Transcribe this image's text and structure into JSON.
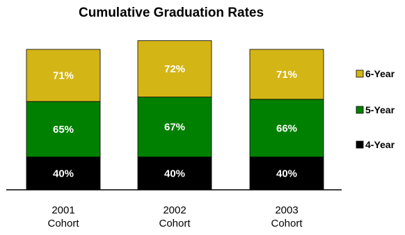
{
  "chart_data": {
    "type": "bar",
    "stacked": true,
    "title": "Cumulative Graduation Rates",
    "categories": [
      [
        "2001",
        "Cohort"
      ],
      [
        "2002",
        "Cohort"
      ],
      [
        "2003",
        "Cohort"
      ]
    ],
    "series": [
      {
        "name": "4-Year",
        "values": [
          40,
          40,
          40
        ],
        "labels": [
          "40%",
          "40%",
          "40%"
        ],
        "color": "#000000"
      },
      {
        "name": "5-Year",
        "values": [
          65,
          67,
          66
        ],
        "labels": [
          "65%",
          "67%",
          "66%"
        ],
        "color": "#008000"
      },
      {
        "name": "6-Year",
        "values": [
          71,
          72,
          71
        ],
        "labels": [
          "71%",
          "72%",
          "71%"
        ],
        "color": "#D4B516"
      }
    ],
    "legend_position": "right",
    "grid": false
  }
}
